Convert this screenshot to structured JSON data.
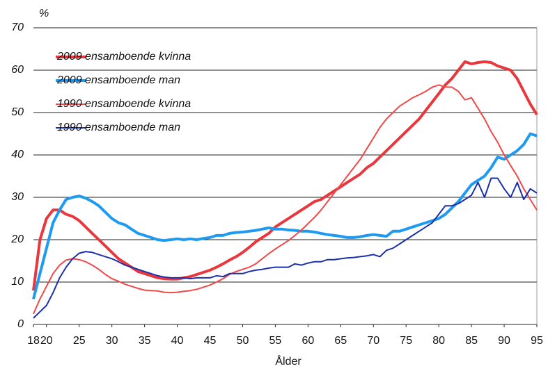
{
  "chart_data": {
    "type": "line",
    "ylabel": "%",
    "xlabel": "Ålder",
    "x": [
      18,
      19,
      20,
      21,
      22,
      23,
      24,
      25,
      26,
      27,
      28,
      29,
      30,
      31,
      32,
      33,
      34,
      35,
      36,
      37,
      38,
      39,
      40,
      41,
      42,
      43,
      44,
      45,
      46,
      47,
      48,
      49,
      50,
      51,
      52,
      53,
      54,
      55,
      56,
      57,
      58,
      59,
      60,
      61,
      62,
      63,
      64,
      65,
      66,
      67,
      68,
      69,
      70,
      71,
      72,
      73,
      74,
      75,
      76,
      77,
      78,
      79,
      80,
      81,
      82,
      83,
      84,
      85,
      86,
      87,
      88,
      89,
      90,
      91,
      92,
      93,
      94,
      95
    ],
    "series": [
      {
        "name": "2009 ensamboende kvinna",
        "color": "#e8383d",
        "values": [
          8,
          20,
          25,
          27,
          27,
          26,
          25.5,
          24.5,
          23,
          21.5,
          20,
          18.5,
          17,
          15.5,
          14.5,
          13.5,
          12.5,
          12,
          11.5,
          11,
          10.8,
          10.7,
          10.7,
          11,
          11.3,
          11.8,
          12.3,
          12.8,
          13.5,
          14.3,
          15.2,
          16,
          17,
          18.2,
          19.5,
          20.5,
          21.5,
          23,
          24,
          25,
          26,
          27,
          28,
          29,
          29.5,
          30.5,
          31.5,
          32.5,
          33.5,
          34.5,
          35.5,
          37,
          38,
          39.5,
          41,
          42.5,
          44,
          45.5,
          47,
          48.5,
          50.5,
          52.5,
          54.5,
          56.5,
          58,
          60,
          62,
          61.5,
          61.8,
          62,
          61.8,
          61,
          60.5,
          60,
          58,
          55,
          52,
          49.5
        ]
      },
      {
        "name": "2009 ensamboende man",
        "color": "#1e9bf0",
        "values": [
          6,
          12,
          18,
          24,
          27,
          29.5,
          30,
          30.3,
          29.8,
          29,
          28,
          26.5,
          25,
          24,
          23.5,
          22.5,
          21.5,
          21,
          20.5,
          20,
          19.8,
          20,
          20.2,
          20,
          20.2,
          20,
          20.3,
          20.5,
          21,
          21,
          21.5,
          21.7,
          21.8,
          22,
          22.2,
          22.5,
          22.8,
          22.5,
          22.5,
          22.3,
          22.2,
          22,
          22,
          21.8,
          21.5,
          21.2,
          21,
          20.8,
          20.5,
          20.5,
          20.7,
          21,
          21.2,
          21,
          20.8,
          22,
          22,
          22.5,
          23,
          23.5,
          24,
          24.5,
          25,
          26,
          27.5,
          29,
          31,
          33,
          34,
          35,
          37,
          39.5,
          39,
          40,
          41,
          42.5,
          45,
          44.5
        ]
      },
      {
        "name": "1990 ensamboende kvinna",
        "color": "#f04848",
        "values": [
          2.5,
          6,
          9,
          12,
          14,
          15.2,
          15.5,
          15.3,
          14.8,
          14,
          13,
          11.8,
          10.8,
          10.2,
          9.5,
          9,
          8.5,
          8.1,
          8,
          7.9,
          7.6,
          7.5,
          7.6,
          7.8,
          8,
          8.3,
          8.8,
          9.3,
          10,
          10.8,
          11.8,
          12.5,
          13,
          13.5,
          14.3,
          15.5,
          16.7,
          17.8,
          18.8,
          19.8,
          21,
          22.3,
          23.8,
          25.3,
          27,
          29,
          31,
          33,
          35,
          37,
          39,
          41.5,
          44,
          46.5,
          48.5,
          50,
          51.5,
          52.5,
          53.5,
          54.2,
          55,
          56,
          56.5,
          56,
          56,
          55,
          53,
          53.5,
          51,
          48.5,
          45.5,
          43,
          40,
          37.5,
          35,
          32,
          29.5,
          27
        ]
      },
      {
        "name": "1990 ensamboende man",
        "color": "#1a2faa",
        "values": [
          1.5,
          3,
          4.5,
          7.5,
          11,
          13.5,
          15.5,
          16.8,
          17.2,
          17,
          16.5,
          16,
          15.5,
          14.8,
          14,
          13.5,
          13,
          12.5,
          12,
          11.5,
          11.2,
          11,
          11,
          11,
          10.8,
          11,
          11,
          11,
          11.5,
          11.3,
          12,
          12,
          12,
          12.5,
          12.8,
          13,
          13.3,
          13.5,
          13.5,
          13.5,
          14.3,
          14,
          14.5,
          14.8,
          14.8,
          15.3,
          15.3,
          15.5,
          15.7,
          15.8,
          16,
          16.2,
          16.5,
          16,
          17.5,
          18,
          19,
          20,
          21,
          22,
          23,
          24,
          26,
          28,
          28,
          28.5,
          29.5,
          30.5,
          33.5,
          30,
          34.5,
          34.5,
          32,
          30,
          33.5,
          29.5,
          32,
          31
        ]
      }
    ],
    "xlim": [
      18,
      95
    ],
    "xticks": [
      18,
      20,
      25,
      30,
      35,
      40,
      45,
      50,
      55,
      60,
      65,
      70,
      75,
      80,
      85,
      90,
      95
    ],
    "ylim": [
      0,
      70
    ],
    "yticks": [
      0,
      10,
      20,
      30,
      40,
      50,
      60,
      70
    ],
    "grid": true,
    "legend": "upper left"
  }
}
